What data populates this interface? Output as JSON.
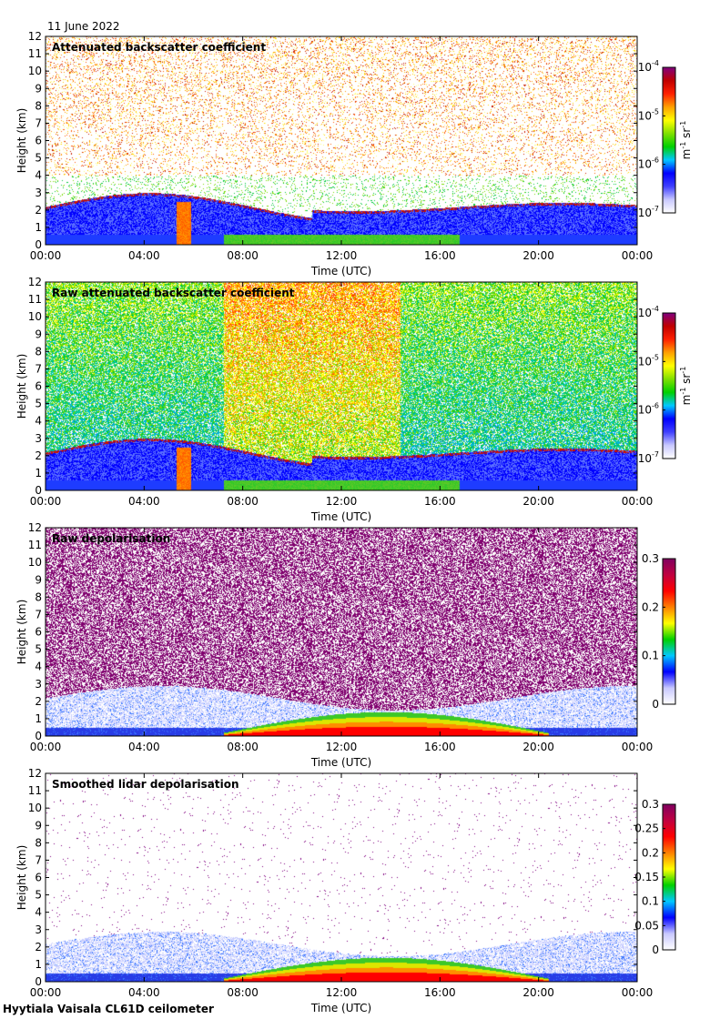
{
  "date": "11 June 2022",
  "footer": "Hyytiala Vaisala CL61D ceilometer",
  "colors": {
    "backscatter_scale": [
      "#ffffff",
      "#c8c8ff",
      "#4040ff",
      "#0000ff",
      "#00c8ff",
      "#00d000",
      "#80e000",
      "#ffff00",
      "#ffa000",
      "#ff2000",
      "#c00000",
      "#800080"
    ],
    "depol_scale": [
      "#ffffff",
      "#c8c8ff",
      "#0000ff",
      "#00c8ff",
      "#00d000",
      "#ffff00",
      "#ff8000",
      "#ff0000",
      "#c00040",
      "#800060"
    ]
  },
  "chart_data": [
    {
      "type": "heatmap",
      "title": "Attenuated backscatter coefficient",
      "xlabel": "Time (UTC)",
      "ylabel": "Height (km)",
      "x_ticks": [
        "00:00",
        "04:00",
        "08:00",
        "12:00",
        "16:00",
        "20:00",
        "00:00"
      ],
      "y_ticks": [
        "0",
        "1",
        "2",
        "3",
        "4",
        "5",
        "6",
        "7",
        "8",
        "9",
        "10",
        "11",
        "12"
      ],
      "ylim": [
        0,
        12
      ],
      "colorbar": {
        "scale": "log",
        "ticks": [
          "10",
          "10",
          "10",
          "10"
        ],
        "exponents": [
          "-4",
          "-5",
          "-6",
          "-7"
        ],
        "unit": "m",
        "unit_exp1": "-1",
        "unit2": " sr",
        "unit_exp2": "-1"
      }
    },
    {
      "type": "heatmap",
      "title": "Raw attenuated backscatter coefficient",
      "xlabel": "Time (UTC)",
      "ylabel": "Height (km)",
      "x_ticks": [
        "00:00",
        "04:00",
        "08:00",
        "12:00",
        "16:00",
        "20:00",
        "00:00"
      ],
      "y_ticks": [
        "0",
        "1",
        "2",
        "3",
        "4",
        "5",
        "6",
        "7",
        "8",
        "9",
        "10",
        "11",
        "12"
      ],
      "ylim": [
        0,
        12
      ],
      "colorbar": {
        "scale": "log",
        "ticks": [
          "10",
          "10",
          "10",
          "10"
        ],
        "exponents": [
          "-4",
          "-5",
          "-6",
          "-7"
        ],
        "unit": "m",
        "unit_exp1": "-1",
        "unit2": " sr",
        "unit_exp2": "-1"
      }
    },
    {
      "type": "heatmap",
      "title": "Raw depolarisation",
      "xlabel": "Time (UTC)",
      "ylabel": "Height (km)",
      "x_ticks": [
        "00:00",
        "04:00",
        "08:00",
        "12:00",
        "16:00",
        "20:00",
        "00:00"
      ],
      "y_ticks": [
        "0",
        "1",
        "2",
        "3",
        "4",
        "5",
        "6",
        "7",
        "8",
        "9",
        "10",
        "11",
        "12"
      ],
      "ylim": [
        0,
        12
      ],
      "colorbar": {
        "scale": "linear",
        "ticks": [
          "0.3",
          "0.2",
          "0.1",
          "0"
        ]
      }
    },
    {
      "type": "heatmap",
      "title": "Smoothed lidar depolarisation",
      "xlabel": "Time (UTC)",
      "ylabel": "Height (km)",
      "x_ticks": [
        "00:00",
        "04:00",
        "08:00",
        "12:00",
        "16:00",
        "20:00",
        "00:00"
      ],
      "y_ticks": [
        "0",
        "1",
        "2",
        "3",
        "4",
        "5",
        "6",
        "7",
        "8",
        "9",
        "10",
        "11",
        "12"
      ],
      "ylim": [
        0,
        12
      ],
      "colorbar": {
        "scale": "linear",
        "ticks": [
          "0.3",
          "0.25",
          "0.2",
          "0.15",
          "0.1",
          "0.05",
          "0"
        ]
      }
    }
  ]
}
